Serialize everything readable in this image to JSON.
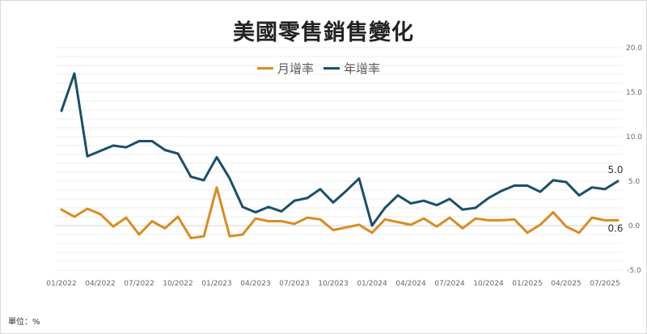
{
  "chart_data": {
    "type": "line",
    "title": "美國零售銷售變化",
    "unit_label": "單位：%",
    "x": [
      "01/2022",
      "02/2022",
      "03/2022",
      "04/2022",
      "05/2022",
      "06/2022",
      "07/2022",
      "08/2022",
      "09/2022",
      "10/2022",
      "11/2022",
      "12/2022",
      "01/2023",
      "02/2023",
      "03/2023",
      "04/2023",
      "05/2023",
      "06/2023",
      "07/2023",
      "08/2023",
      "09/2023",
      "10/2023",
      "11/2023",
      "12/2023",
      "01/2024",
      "02/2024",
      "03/2024",
      "04/2024",
      "05/2024",
      "06/2024",
      "07/2024",
      "08/2024",
      "09/2024",
      "10/2024",
      "11/2024",
      "12/2024",
      "01/2025",
      "02/2025",
      "03/2025",
      "04/2025",
      "05/2025",
      "06/2025",
      "07/2025",
      "08/2025"
    ],
    "x_tick_labels": [
      "01/2022",
      "04/2022",
      "07/2022",
      "10/2022",
      "01/2023",
      "04/2023",
      "07/2023",
      "10/2023",
      "01/2024",
      "04/2024",
      "07/2024",
      "10/2024",
      "01/2025",
      "04/2025",
      "07/2025"
    ],
    "series": [
      {
        "name": "月增率",
        "color": "#D98C1F",
        "values": [
          1.8,
          1.0,
          1.9,
          1.3,
          -0.1,
          0.9,
          -1.0,
          0.5,
          -0.3,
          1.0,
          -1.4,
          -1.2,
          4.3,
          -1.2,
          -1.0,
          0.8,
          0.5,
          0.5,
          0.2,
          0.9,
          0.7,
          -0.5,
          -0.2,
          0.1,
          -0.8,
          0.7,
          0.4,
          0.1,
          0.8,
          -0.1,
          0.9,
          -0.3,
          0.8,
          0.6,
          0.6,
          0.7,
          -0.8,
          0.1,
          1.5,
          -0.1,
          -0.8,
          0.9,
          0.6,
          0.6
        ]
      },
      {
        "name": "年增率",
        "color": "#1A4F6A",
        "values": [
          12.9,
          17.1,
          7.8,
          8.4,
          9.0,
          8.8,
          9.5,
          9.5,
          8.5,
          8.1,
          5.5,
          5.1,
          7.7,
          5.3,
          2.1,
          1.5,
          2.1,
          1.6,
          2.8,
          3.1,
          4.1,
          2.6,
          3.9,
          5.3,
          0.0,
          2.0,
          3.4,
          2.5,
          2.8,
          2.3,
          3.0,
          1.8,
          2.0,
          3.1,
          3.9,
          4.5,
          4.5,
          3.8,
          5.1,
          4.9,
          3.4,
          4.3,
          4.1,
          5.0
        ]
      }
    ],
    "ylim": [
      -5.0,
      20.0
    ],
    "y_ticks": [
      -5.0,
      0.0,
      5.0,
      10.0,
      15.0,
      20.0
    ],
    "y_tick_labels": [
      "-5.0",
      "0.0",
      "5.0",
      "10.0",
      "15.0",
      "20.0"
    ],
    "y_axis_side": "right",
    "end_labels": {
      "年增率": "5.0",
      "月增率": "0.6"
    },
    "legend_position": "top-center",
    "grid": true
  }
}
